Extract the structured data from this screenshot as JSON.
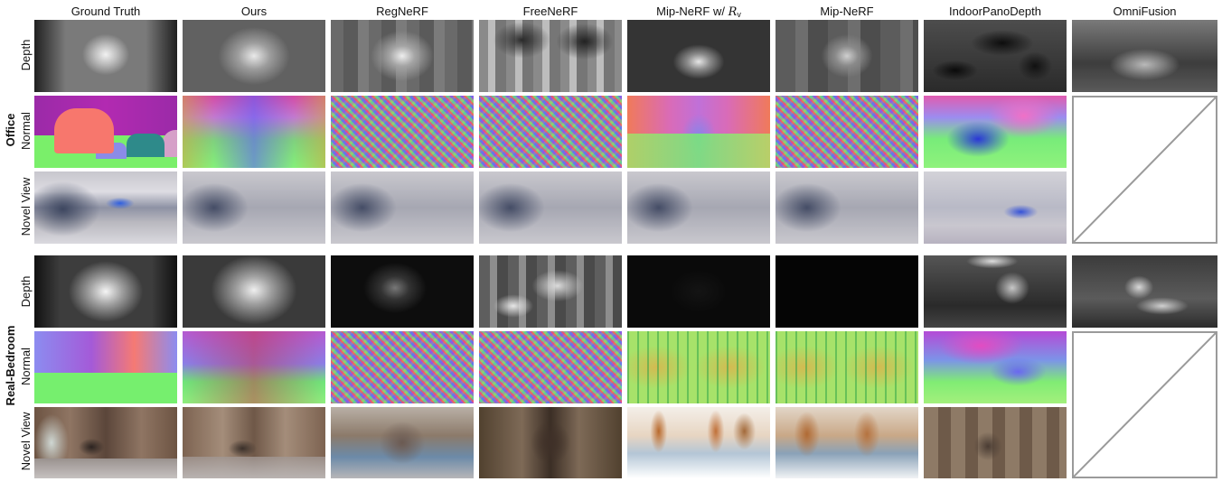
{
  "columns": [
    {
      "label": "Ground Truth"
    },
    {
      "label": "Ours"
    },
    {
      "label": "RegNeRF"
    },
    {
      "label": "FreeNeRF"
    },
    {
      "label": "Mip-NeRF w/ ",
      "sym": "R",
      "sub": "v"
    },
    {
      "label": "Mip-NeRF"
    },
    {
      "label": "IndoorPanoDepth"
    },
    {
      "label": "OmniFusion"
    }
  ],
  "groups": [
    {
      "label": "Office",
      "rows": [
        "Depth",
        "Normal",
        "Novel View"
      ]
    },
    {
      "label": "Real-Bedroom",
      "rows": [
        "Depth",
        "Normal",
        "Novel View"
      ]
    }
  ],
  "not_available_marker": "diagonal-slash"
}
